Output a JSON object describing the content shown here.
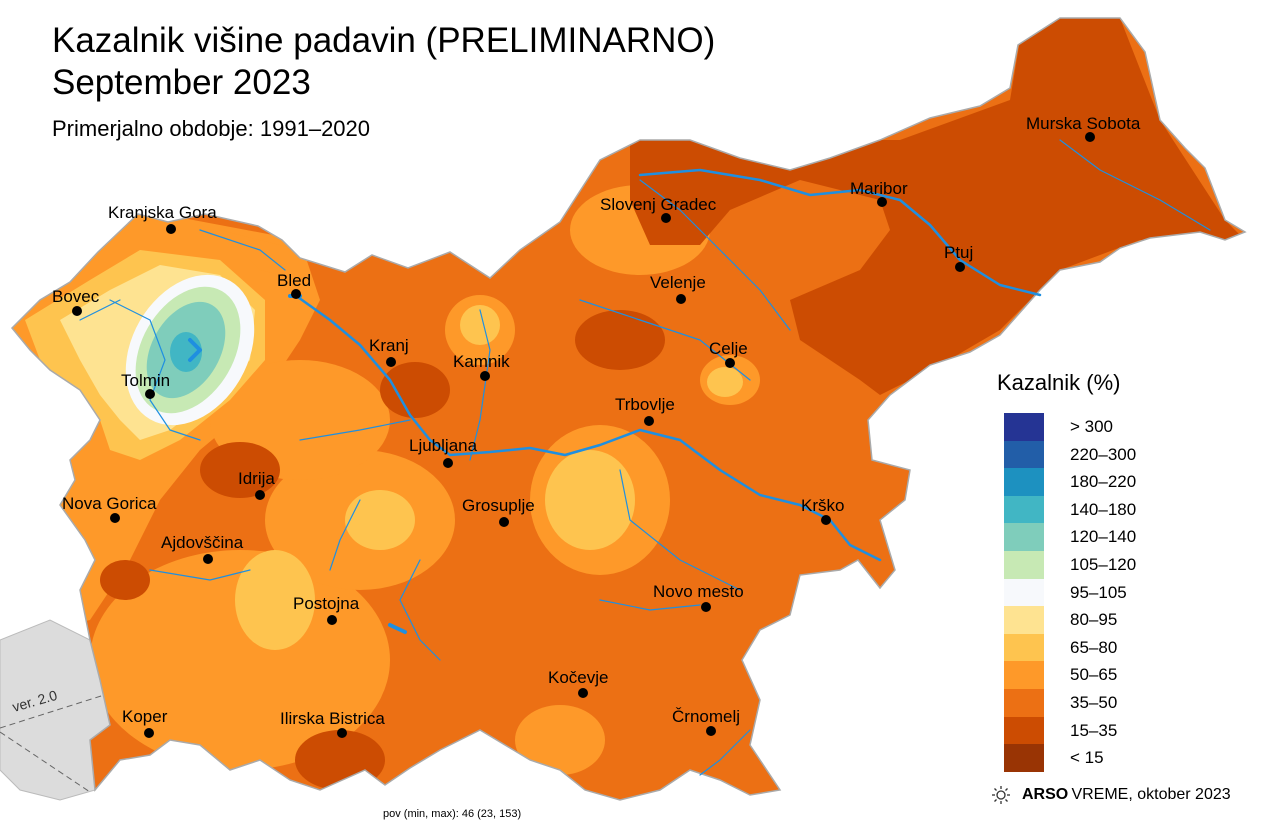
{
  "title_line1": "Kazalnik višine padavin (PRELIMINARNO)",
  "title_line2": "September 2023",
  "subtitle": "Primerjalno obdobje: 1991–2020",
  "legend": {
    "title": "Kazalnik (%)",
    "items": [
      {
        "label": "> 300",
        "color": "#253494"
      },
      {
        "label": "220–300",
        "color": "#225ea8"
      },
      {
        "label": "180–220",
        "color": "#1d91c0"
      },
      {
        "label": "140–180",
        "color": "#41b6c4"
      },
      {
        "label": "120–140",
        "color": "#7fcdbb"
      },
      {
        "label": "105–120",
        "color": "#c7e9b4"
      },
      {
        "label": "95–105",
        "color": "#f7f9fc"
      },
      {
        "label": "80–95",
        "color": "#fee391"
      },
      {
        "label": "65–80",
        "color": "#fec44f"
      },
      {
        "label": "50–65",
        "color": "#fe9929"
      },
      {
        "label": "35–50",
        "color": "#ec7014"
      },
      {
        "label": "15–35",
        "color": "#cc4c02"
      },
      {
        "label": "< 15",
        "color": "#993404"
      }
    ]
  },
  "cities": [
    {
      "name": "Murska Sobota"
    },
    {
      "name": "Maribor"
    },
    {
      "name": "Slovenj Gradec"
    },
    {
      "name": "Ptuj"
    },
    {
      "name": "Kranjska Gora"
    },
    {
      "name": "Bled"
    },
    {
      "name": "Velenje"
    },
    {
      "name": "Bovec"
    },
    {
      "name": "Kranj"
    },
    {
      "name": "Kamnik"
    },
    {
      "name": "Celje"
    },
    {
      "name": "Tolmin"
    },
    {
      "name": "Trbovlje"
    },
    {
      "name": "Ljubljana"
    },
    {
      "name": "Idrija"
    },
    {
      "name": "Nova Gorica"
    },
    {
      "name": "Grosuplje"
    },
    {
      "name": "Krško"
    },
    {
      "name": "Ajdovščina"
    },
    {
      "name": "Novo mesto"
    },
    {
      "name": "Postojna"
    },
    {
      "name": "Kočevje"
    },
    {
      "name": "Koper"
    },
    {
      "name": "Ilirska Bistrica"
    },
    {
      "name": "Črnomelj"
    }
  ],
  "credit": {
    "brand": "ARSO",
    "service": "VREME",
    "date": ", oktober 2023",
    "icon": "sun-logo-icon"
  },
  "footer": "pov (min, max): 46 (23, 153)",
  "version": "ver. 2.0"
}
